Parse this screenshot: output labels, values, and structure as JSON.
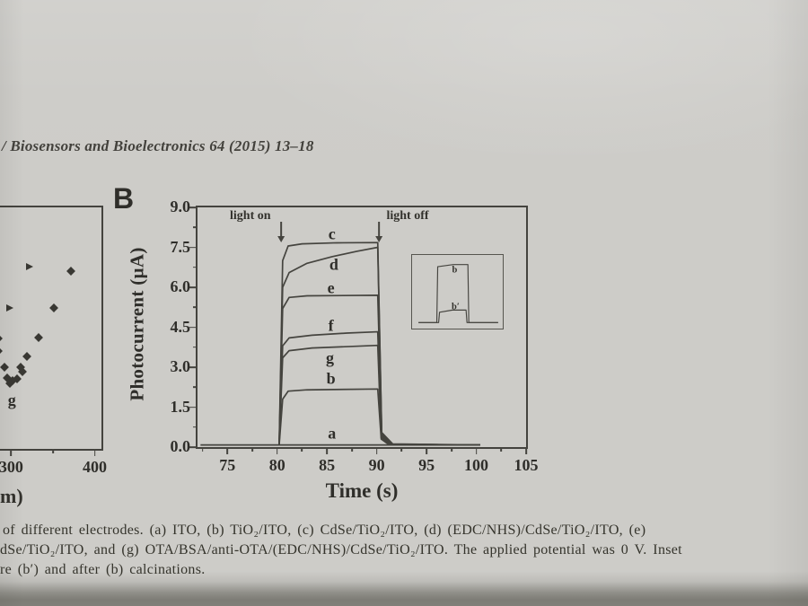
{
  "page": {
    "header_text": "/ Biosensors and Bioelectronics 64 (2015) 13–18",
    "panel_label": "B",
    "caption_lines": [
      "of different electrodes. (a) ITO, (b) TiO₂/ITO, (c) CdSe/TiO₂/ITO, (d) (EDC/NHS)/CdSe/TiO₂/ITO, (e)",
      "dSe/TiO₂/ITO, and (g) OTA/BSA/anti-OTA/(EDC/NHS)/CdSe/TiO₂/ITO. The applied potential was 0 V. Inset",
      "re (b′) and after (b) calcinations."
    ]
  },
  "colors": {
    "ink": "#45443f",
    "paper": "#cdccc8",
    "shadow": "#87867c",
    "text_ink": "#35342c"
  },
  "chart_data": [
    {
      "id": "main",
      "type": "line",
      "title": "",
      "xlabel": "Time (s)",
      "ylabel": "Photocurrent (µA)",
      "xlim": [
        72,
        105
      ],
      "ylim": [
        0,
        9
      ],
      "xticks": [
        75,
        80,
        85,
        90,
        95,
        100,
        105
      ],
      "x_minor_step": 2.5,
      "yticks": [
        "0.0",
        "1.5",
        "3.0",
        "4.5",
        "6.0",
        "7.5",
        "9.0"
      ],
      "y_minor_step": 1.5,
      "y_minor_start": 0.75,
      "grid": false,
      "annotations": [
        {
          "text": "light on",
          "x": 77.3,
          "y": 8.65,
          "arrow_x": 80.4,
          "arrow_y1": 8.45,
          "arrow_y2": 7.9
        },
        {
          "text": "light off",
          "x": 93.1,
          "y": 8.65,
          "arrow_x": 90.2,
          "arrow_y1": 8.45,
          "arrow_y2": 7.9
        }
      ],
      "series": [
        {
          "name": "a",
          "label_x": 85.5,
          "label_y": 0.5,
          "points": [
            [
              72.3,
              0.08
            ],
            [
              100.4,
              0.08
            ]
          ]
        },
        {
          "name": "b",
          "label_x": 85.4,
          "label_y": 2.55,
          "points": [
            [
              80.2,
              0.08
            ],
            [
              80.55,
              1.8
            ],
            [
              81.1,
              2.1
            ],
            [
              83,
              2.15
            ],
            [
              90.1,
              2.18
            ],
            [
              90.45,
              0.3
            ],
            [
              91.2,
              0.1
            ],
            [
              100.4,
              0.08
            ]
          ]
        },
        {
          "name": "g",
          "label_x": 85.3,
          "label_y": 3.35,
          "points": [
            [
              80.2,
              0.08
            ],
            [
              80.55,
              3.35
            ],
            [
              81.2,
              3.62
            ],
            [
              83.5,
              3.72
            ],
            [
              90.1,
              3.82
            ],
            [
              90.45,
              0.35
            ],
            [
              91.3,
              0.1
            ],
            [
              100.4,
              0.08
            ]
          ]
        },
        {
          "name": "f",
          "label_x": 85.4,
          "label_y": 4.55,
          "points": [
            [
              80.2,
              0.08
            ],
            [
              80.55,
              3.8
            ],
            [
              81.2,
              4.1
            ],
            [
              83.5,
              4.2
            ],
            [
              87,
              4.28
            ],
            [
              90.1,
              4.33
            ],
            [
              90.45,
              0.4
            ],
            [
              91.3,
              0.1
            ],
            [
              100.4,
              0.08
            ]
          ]
        },
        {
          "name": "e",
          "label_x": 85.4,
          "label_y": 5.95,
          "points": [
            [
              80.2,
              0.08
            ],
            [
              80.55,
              5.2
            ],
            [
              81.2,
              5.62
            ],
            [
              83,
              5.68
            ],
            [
              90.1,
              5.7
            ],
            [
              90.5,
              0.45
            ],
            [
              91.4,
              0.1
            ],
            [
              100.4,
              0.08
            ]
          ]
        },
        {
          "name": "d",
          "label_x": 85.7,
          "label_y": 6.85,
          "points": [
            [
              80.2,
              0.08
            ],
            [
              80.55,
              6.0
            ],
            [
              81.2,
              6.55
            ],
            [
              83,
              6.9
            ],
            [
              85.5,
              7.15
            ],
            [
              88,
              7.35
            ],
            [
              90.1,
              7.5
            ],
            [
              90.5,
              0.5
            ],
            [
              91.5,
              0.1
            ],
            [
              100.4,
              0.08
            ]
          ]
        },
        {
          "name": "c",
          "label_x": 85.5,
          "label_y": 7.98,
          "points": [
            [
              80.2,
              0.08
            ],
            [
              80.55,
              7.0
            ],
            [
              81.1,
              7.55
            ],
            [
              82.5,
              7.63
            ],
            [
              86,
              7.67
            ],
            [
              90.1,
              7.68
            ],
            [
              90.5,
              0.55
            ],
            [
              91.6,
              0.12
            ],
            [
              100.4,
              0.08
            ]
          ]
        }
      ]
    },
    {
      "id": "left-partial",
      "type": "scatter",
      "xlabel_partial": "m)",
      "xlim": [
        188,
        408
      ],
      "ylim": [
        0,
        10
      ],
      "xticks": [
        300,
        400
      ],
      "x_minor": [
        350
      ],
      "label": {
        "text": "g",
        "x": 301,
        "y": 2.0
      },
      "diamond_points": [
        [
          371.0,
          7.35
        ],
        [
          351.6,
          5.85
        ],
        [
          333.3,
          4.6
        ],
        [
          285.0,
          4.56
        ],
        [
          285.0,
          4.04
        ],
        [
          319.4,
          3.82
        ],
        [
          311.8,
          3.38
        ],
        [
          292.5,
          3.38
        ],
        [
          314.0,
          3.2
        ],
        [
          295.7,
          2.94
        ],
        [
          307.5,
          2.9
        ],
        [
          302.2,
          2.83
        ],
        [
          298.9,
          2.72
        ]
      ],
      "triangle_points": [
        [
          322.6,
          7.54
        ],
        [
          298.9,
          5.85
        ]
      ]
    },
    {
      "id": "inset",
      "type": "line",
      "xlim": [
        0,
        100
      ],
      "ylim": [
        0,
        100
      ],
      "series": [
        {
          "name": "b",
          "label_x": 47,
          "label_y": 80,
          "points": [
            [
              7,
              8
            ],
            [
              27,
              8
            ],
            [
              28,
              84
            ],
            [
              45,
              87
            ],
            [
              61,
              87
            ],
            [
              62,
              8
            ],
            [
              94,
              8
            ]
          ]
        },
        {
          "name": "b′",
          "label_x": 48,
          "label_y": 30,
          "points": [
            [
              7,
              8
            ],
            [
              29,
              8
            ],
            [
              30,
              22
            ],
            [
              44,
              25
            ],
            [
              59,
              25
            ],
            [
              60,
              8
            ],
            [
              94,
              8
            ]
          ]
        }
      ]
    }
  ]
}
